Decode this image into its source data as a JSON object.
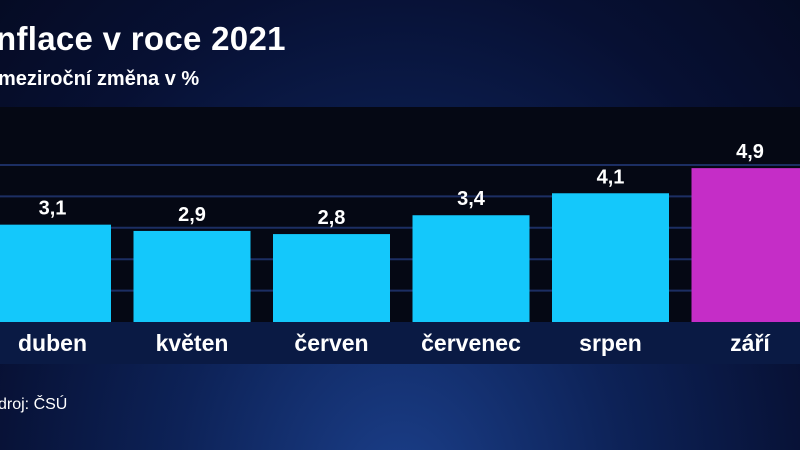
{
  "title": "nflace v roce 2021",
  "subtitle": "meziroční změna v %",
  "source": "droj: ČSÚ",
  "colors": {
    "bar": "#14c8fb",
    "highlight": "#c52dc7",
    "plot_background": "#050814",
    "grid": "#1c2e63"
  },
  "chart_data": {
    "type": "bar",
    "categories": [
      "duben",
      "květen",
      "červen",
      "červenec",
      "srpen",
      "září"
    ],
    "values": [
      3.1,
      2.9,
      2.8,
      3.4,
      4.1,
      4.9
    ],
    "value_labels": [
      "3,1",
      "2,9",
      "2,8",
      "3,4",
      "4,1",
      "4,9"
    ],
    "highlighted_category": "září",
    "title": "nflace v roce 2021",
    "subtitle": "meziroční změna v %",
    "xlabel": "",
    "ylabel": "",
    "ylim": [
      0,
      5.5
    ],
    "grid": true,
    "legend": "none"
  }
}
